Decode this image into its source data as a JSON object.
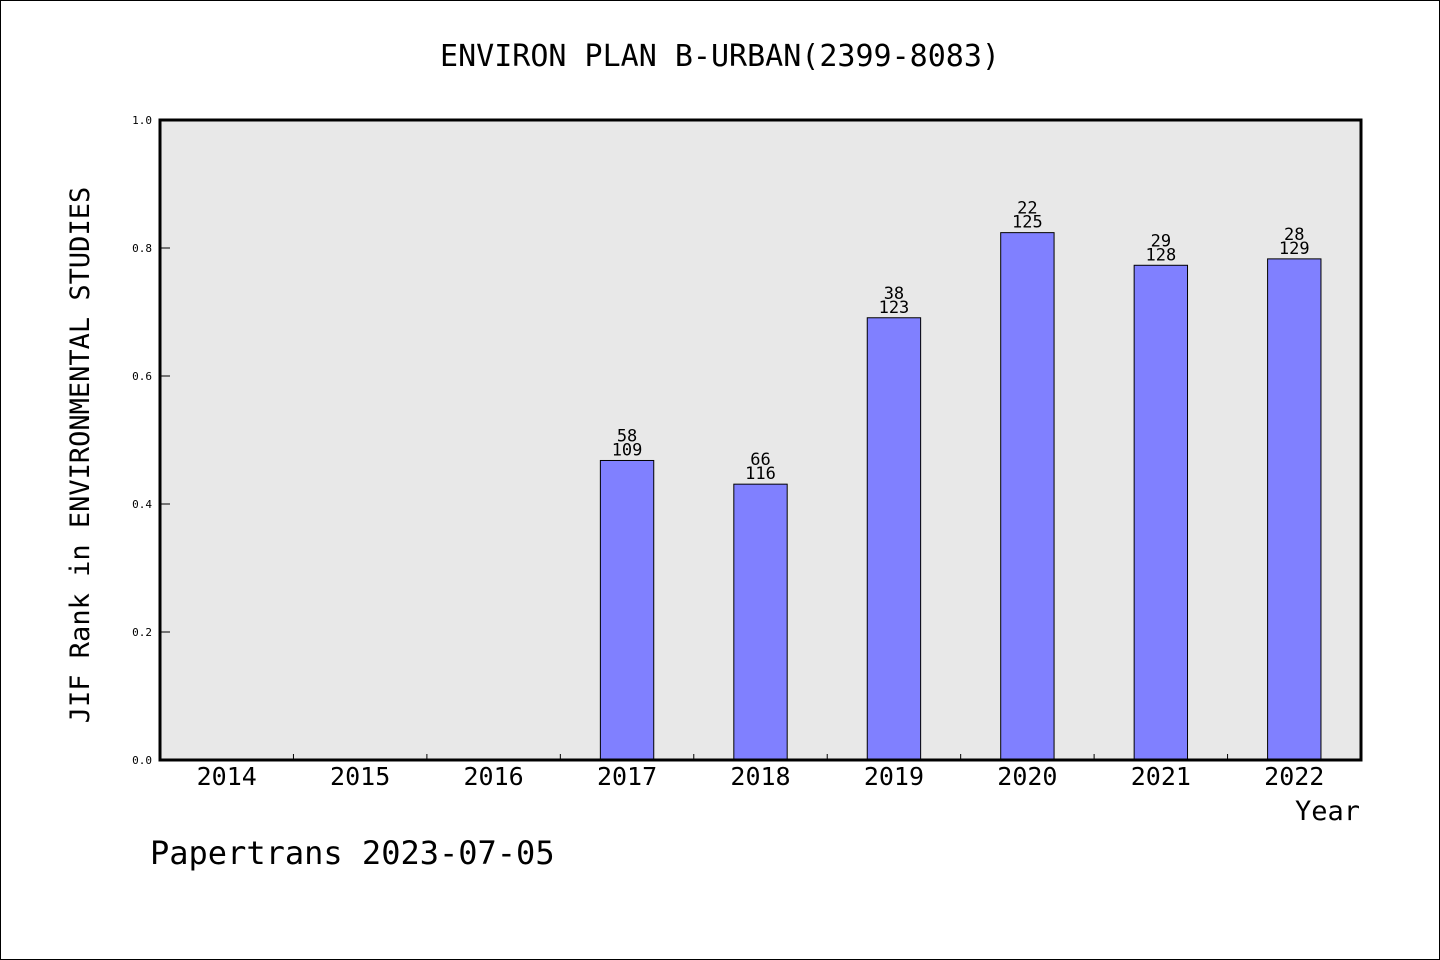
{
  "chart_data": {
    "type": "bar",
    "title": "ENVIRON PLAN B-URBAN(2399-8083)",
    "xlabel": "Year",
    "ylabel": "JIF Rank in ENVIRONMENTAL STUDIES",
    "ylim": [
      0,
      1.0
    ],
    "yticks": [
      "0.0",
      "0.2",
      "0.4",
      "0.6",
      "0.8",
      "1.0"
    ],
    "categories": [
      "2014",
      "2015",
      "2016",
      "2017",
      "2018",
      "2019",
      "2020",
      "2021",
      "2022"
    ],
    "values": [
      null,
      null,
      null,
      0.468,
      0.431,
      0.691,
      0.824,
      0.773,
      0.783
    ],
    "label_top": [
      null,
      null,
      null,
      "58",
      "66",
      "38",
      "22",
      "29",
      "28"
    ],
    "label_bottom": [
      null,
      null,
      null,
      "109",
      "116",
      "123",
      "125",
      "128",
      "129"
    ],
    "bar_color": "#8080ff",
    "plot_background": "#e8e8e8",
    "grid": false,
    "footer": "Papertrans 2023-07-05"
  }
}
